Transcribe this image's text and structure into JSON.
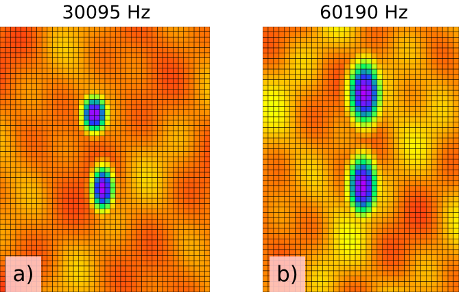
{
  "panels": [
    {
      "label": "a)",
      "title": "30095 Hz"
    },
    {
      "label": "b)",
      "title": "60190 Hz"
    }
  ],
  "chart_data": [
    {
      "type": "heatmap",
      "title": "30095 Hz",
      "panel_label": "a)",
      "grid": true,
      "colormap": [
        "#ff1a1a",
        "#ff7f00",
        "#ffff00",
        "#00ff66",
        "#1e3cff",
        "#b400ff"
      ],
      "hotspots": [
        {
          "center": [
            0.45,
            0.33
          ],
          "radius": [
            0.08,
            0.09
          ],
          "peak_color": "#33ff66"
        },
        {
          "center": [
            0.49,
            0.61
          ],
          "radius": [
            0.07,
            0.11
          ],
          "peak_color": "#ff00aa"
        }
      ]
    },
    {
      "type": "heatmap",
      "title": "60190 Hz",
      "panel_label": "b)",
      "grid": true,
      "colormap": [
        "#ff1a1a",
        "#ff7f00",
        "#ffff00",
        "#00ff66",
        "#1e3cff",
        "#b400ff"
      ],
      "hotspots": [
        {
          "center": [
            0.52,
            0.25
          ],
          "radius": [
            0.11,
            0.16
          ],
          "peak_color": "#ff00aa"
        },
        {
          "center": [
            0.51,
            0.6
          ],
          "radius": [
            0.1,
            0.15
          ],
          "peak_color": "#ff00aa"
        }
      ]
    }
  ]
}
